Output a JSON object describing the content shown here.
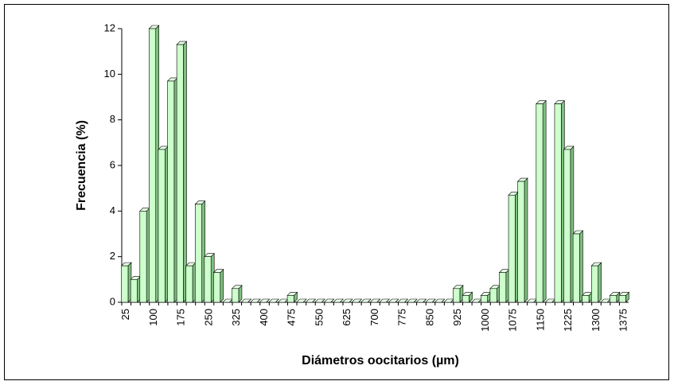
{
  "chart_data": {
    "type": "bar",
    "x_label": "Diámetros oocitarios (µm)",
    "y_label": "Frecuencia (%)",
    "categories": [
      "25",
      null,
      null,
      "100",
      null,
      null,
      "175",
      null,
      null,
      "250",
      null,
      null,
      "325",
      null,
      null,
      "400",
      null,
      null,
      "475",
      null,
      null,
      "550",
      null,
      null,
      "625",
      null,
      null,
      "700",
      null,
      null,
      "775",
      null,
      null,
      "850",
      null,
      null,
      "925",
      null,
      null,
      "1000",
      null,
      null,
      "1075",
      null,
      null,
      "1150",
      null,
      null,
      "1225",
      null,
      null,
      "1300",
      null,
      null,
      "1375"
    ],
    "values": [
      1.6,
      1.0,
      4.0,
      12.0,
      6.7,
      9.7,
      11.3,
      1.6,
      4.3,
      2.0,
      1.3,
      0,
      0.6,
      0,
      0,
      0,
      0,
      0,
      0.3,
      0,
      0,
      0,
      0,
      0,
      0,
      0,
      0,
      0,
      0,
      0,
      0,
      0,
      0,
      0,
      0,
      0,
      0.6,
      0.3,
      0,
      0.3,
      0.6,
      1.3,
      4.7,
      5.3,
      0,
      8.7,
      0,
      8.7,
      6.7,
      3.0,
      0.3,
      1.6,
      0,
      0.3,
      0.3
    ],
    "color": "#ccffcc",
    "ylim": [
      0,
      12
    ],
    "yticks": [
      0,
      2,
      4,
      6,
      8,
      10,
      12
    ]
  }
}
